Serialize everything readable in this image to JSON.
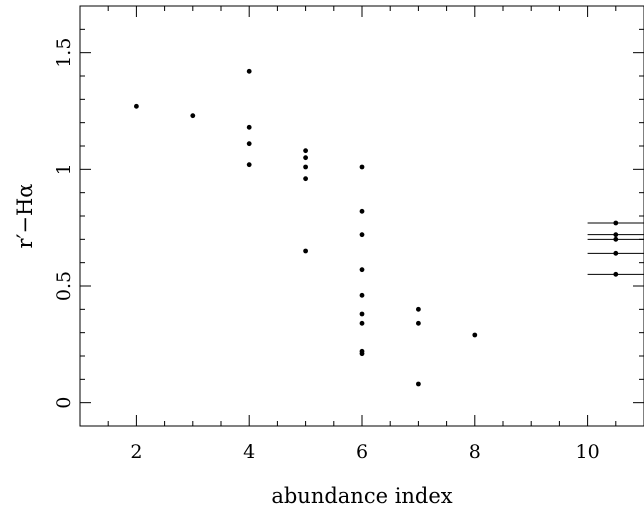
{
  "chart_data": {
    "type": "scatter",
    "title": "",
    "xlabel": "abundance index",
    "ylabel": "r′−Hα",
    "xlim": [
      1,
      11
    ],
    "ylim": [
      -0.1,
      1.7
    ],
    "xticks": [
      2,
      4,
      6,
      8,
      10
    ],
    "xtick_labels": [
      "2",
      "4",
      "6",
      "8",
      "10"
    ],
    "yticks": [
      0,
      0.5,
      1,
      1.5
    ],
    "ytick_labels": [
      "0",
      "0.5",
      "1",
      "1.5"
    ],
    "grid": false,
    "legend": "none",
    "marker_color": "#000000",
    "series": [
      {
        "points": [
          {
            "x": 2,
            "y": 1.27
          },
          {
            "x": 3,
            "y": 1.23
          },
          {
            "x": 4,
            "y": 1.42
          },
          {
            "x": 4,
            "y": 1.18
          },
          {
            "x": 4,
            "y": 1.11
          },
          {
            "x": 4,
            "y": 1.02
          },
          {
            "x": 5,
            "y": 1.08
          },
          {
            "x": 5,
            "y": 1.05
          },
          {
            "x": 5,
            "y": 1.01
          },
          {
            "x": 5,
            "y": 0.96
          },
          {
            "x": 5,
            "y": 0.65
          },
          {
            "x": 6,
            "y": 1.01
          },
          {
            "x": 6,
            "y": 0.82
          },
          {
            "x": 6,
            "y": 0.72
          },
          {
            "x": 6,
            "y": 0.57
          },
          {
            "x": 6,
            "y": 0.46
          },
          {
            "x": 6,
            "y": 0.38
          },
          {
            "x": 6,
            "y": 0.34
          },
          {
            "x": 6,
            "y": 0.22
          },
          {
            "x": 6,
            "y": 0.21
          },
          {
            "x": 7,
            "y": 0.4
          },
          {
            "x": 7,
            "y": 0.34
          },
          {
            "x": 7,
            "y": 0.08
          },
          {
            "x": 8,
            "y": 0.29
          },
          {
            "x": 10.5,
            "y": 0.77,
            "xerr": [
              0.5,
              0.5
            ]
          },
          {
            "x": 10.5,
            "y": 0.72,
            "xerr": [
              0.5,
              0.5
            ]
          },
          {
            "x": 10.5,
            "y": 0.7,
            "xerr": [
              0.5,
              0.5
            ]
          },
          {
            "x": 10.5,
            "y": 0.64,
            "xerr": [
              0.5,
              0.5
            ]
          },
          {
            "x": 10.5,
            "y": 0.55,
            "xerr": [
              0.5,
              0.5
            ]
          }
        ]
      }
    ]
  }
}
